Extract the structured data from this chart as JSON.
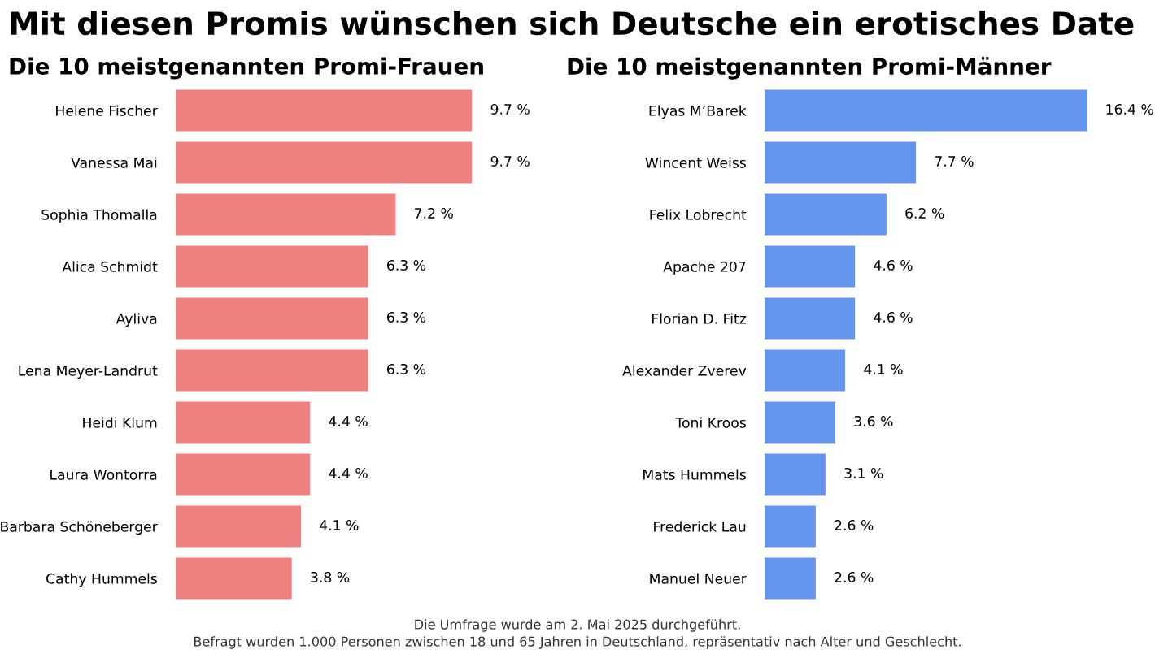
{
  "chart_data": [
    {
      "type": "bar",
      "orientation": "horizontal",
      "title": "Mit diesen Promis wünschen sich Deutsche ein erotisches Date",
      "subtitle": "Die 10 meistgenannten Promi-Frauen",
      "categories": [
        "Helene Fischer",
        "Vanessa Mai",
        "Sophia Thomalla",
        "Alica Schmidt",
        "Ayliva",
        "Lena Meyer-Landrut",
        "Heidi Klum",
        "Laura Wontorra",
        "Barbara Schöneberger",
        "Cathy Hummels"
      ],
      "values": [
        9.7,
        9.7,
        7.2,
        6.3,
        6.3,
        6.3,
        4.4,
        4.4,
        4.1,
        3.8
      ],
      "value_labels": [
        "9.7 %",
        "9.7 %",
        "7.2 %",
        "6.3 %",
        "6.3 %",
        "6.3 %",
        "4.4 %",
        "4.4 %",
        "4.1 %",
        "3.8 %"
      ],
      "color": "#f08080",
      "tick_labels": "y",
      "grid": false,
      "legend": false
    },
    {
      "type": "bar",
      "orientation": "horizontal",
      "subtitle": "Die 10 meistgenannten Promi-Männer",
      "categories": [
        "Elyas M’Barek",
        "Wincent Weiss",
        "Felix Lobrecht",
        "Apache 207",
        "Florian D. Fitz",
        "Alexander Zverev",
        "Toni Kroos",
        "Mats Hummels",
        "Frederick Lau",
        "Manuel Neuer"
      ],
      "values": [
        16.4,
        7.7,
        6.2,
        4.6,
        4.6,
        4.1,
        3.6,
        3.1,
        2.6,
        2.6
      ],
      "value_labels": [
        "16.4 %",
        "7.7 %",
        "6.2 %",
        "4.6 %",
        "4.6 %",
        "4.1 %",
        "3.6 %",
        "3.1 %",
        "2.6 %",
        "2.6 %"
      ],
      "color": "#6495ed",
      "tick_labels": "y",
      "grid": false,
      "legend": false,
      "annotations": [
        "Die Umfrage wurde am 2. Mai 2025 durchgeführt.",
        "Befragt wurden 1.000 Personen zwischen 18 und 65 Jahren in Deutschland, repräsentativ nach Alter und Geschlecht."
      ]
    }
  ]
}
